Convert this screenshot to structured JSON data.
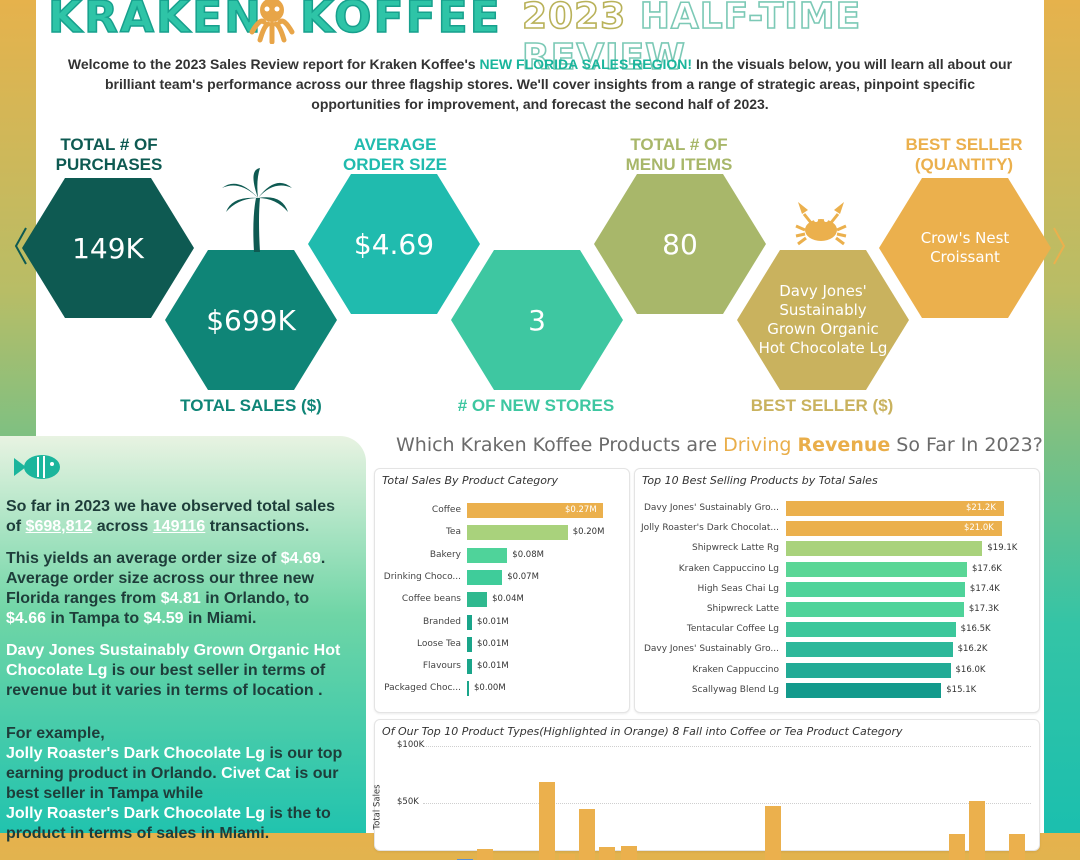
{
  "header": {
    "brand_left": "KRAKEN",
    "brand_right": "KOFFEE",
    "subtitle_year": "2023",
    "subtitle_rest": "HALF-TIME REVIEW",
    "octopus_icon": "octopus-icon"
  },
  "intro": {
    "part1": "Welcome to the 2023 Sales Review report for Kraken Koffee's ",
    "highlight": "NEW FLORIDA SALES REGION!",
    "part2": "  In the visuals below, you will learn all about our brilliant team's performance across our three flagship stores.  We'll cover insights from a range of strategic areas, pinpoint specific opportunities for improvement, and forecast the second half of 2023."
  },
  "kpis": {
    "purchases": {
      "label1": "TOTAL # OF",
      "label2": "PURCHASES",
      "value": "149K",
      "color": "#0e5a52"
    },
    "sales": {
      "label": "TOTAL SALES ($)",
      "value": "$699K",
      "color": "#0f8577"
    },
    "avg_order": {
      "label1": "AVERAGE",
      "label2": "ORDER SIZE",
      "value": "$4.69",
      "color": "#20bbae"
    },
    "new_stores": {
      "label": "# OF NEW STORES",
      "value": "3",
      "color": "#3ec7a1"
    },
    "menu_items": {
      "label1": "TOTAL # OF",
      "label2": "MENU ITEMS",
      "value": "80",
      "color": "#a8b76a"
    },
    "best_seller_dollar": {
      "label": "BEST SELLER ($)",
      "value": "Davy Jones' Sustainably Grown Organic Hot Chocolate Lg",
      "color": "#c9b25e"
    },
    "best_seller_qty": {
      "label1": "BEST SELLER",
      "label2": "(QUANTITY)",
      "value": "Crow's Nest Croissant",
      "color": "#ebb04d"
    }
  },
  "icons": {
    "palm": "palm-tree-icon",
    "crab": "crab-icon",
    "fish": "fish-icon"
  },
  "section_heading": {
    "part1": "Which Kraken Koffee Products are ",
    "driving": "Driving ",
    "revenue": "Revenue",
    "part2": " So Far In 2023?"
  },
  "left_text": {
    "p1_a": "So far in 2023 we have observed total sales of ",
    "p1_total": "$698,812",
    "p1_b": " across ",
    "p1_tx": "149116",
    "p1_c": " transactions.",
    "p2_a": "This yields an average order size of ",
    "p2_avg": "$4.69",
    "p2_b": ". Average order size across our three new Florida ranges from ",
    "p2_orl": "$4.81",
    "p2_c": " in Orlando, to ",
    "p2_tam": "$4.66",
    "p2_d": "  in Tampa to ",
    "p2_mia": "$4.59",
    "p2_e": " in Miami.",
    "p3_prod": "Davy Jones Sustainably Grown Organic Hot Chocolate Lg",
    "p3_rest": " is our best seller in terms of revenue but it varies in terms of location .",
    "p4_a": "For example,",
    "p4_prod1": "Jolly Roaster's Dark Chocolate Lg",
    "p4_b": " is our top earning product in Orlando. ",
    "p4_prod2": "Civet Cat",
    "p4_c": " is our best seller in Tampa while",
    "p4_prod3": "Jolly Roaster's Dark Chocolate Lg",
    "p4_d": " is the to",
    "p4_e": "product in terms of sales in Miami."
  },
  "chart_data": [
    {
      "type": "bar",
      "title": "Total Sales By Product Category",
      "categories": [
        "Coffee",
        "Tea",
        "Bakery",
        "Drinking Choco...",
        "Coffee beans",
        "Branded",
        "Loose Tea",
        "Flavours",
        "Packaged Choc..."
      ],
      "values": [
        0.27,
        0.2,
        0.08,
        0.07,
        0.04,
        0.01,
        0.01,
        0.01,
        0.0
      ],
      "value_labels": [
        "$0.27M",
        "$0.20M",
        "$0.08M",
        "$0.07M",
        "$0.04M",
        "$0.01M",
        "$0.01M",
        "$0.01M",
        "$0.00M"
      ],
      "colors": [
        "#ebb04d",
        "#a9d27c",
        "#4fd39a",
        "#3fcc9a",
        "#2fb98f",
        "#1aa58a",
        "#1aa58a",
        "#1aa58a",
        "#1aa58a"
      ],
      "unit": "$M"
    },
    {
      "type": "bar",
      "title": "Top 10 Best Selling Products by Total Sales",
      "categories": [
        "Davy Jones' Sustainably Gro...",
        "Jolly Roaster's Dark Chocolat...",
        "Shipwreck Latte Rg",
        "Kraken Cappuccino Lg",
        "High Seas Chai Lg",
        "Shipwreck Latte",
        "Tentacular Coffee Lg",
        "Davy Jones' Sustainably Gro...",
        "Kraken Cappuccino",
        "Scallywag Blend Lg"
      ],
      "values": [
        21.2,
        21.0,
        19.1,
        17.6,
        17.4,
        17.3,
        16.5,
        16.2,
        16.0,
        15.1
      ],
      "value_labels": [
        "$21.2K",
        "$21.0K",
        "$19.1K",
        "$17.6K",
        "$17.4K",
        "$17.3K",
        "$16.5K",
        "$16.2K",
        "$16.0K",
        "$15.1K"
      ],
      "colors": [
        "#ebb04d",
        "#ebb04d",
        "#a9d27c",
        "#5ad696",
        "#4fd39a",
        "#4fd39a",
        "#3cc79b",
        "#2db89a",
        "#22ab96",
        "#139a8c"
      ],
      "unit": "$K"
    },
    {
      "type": "bar",
      "title": "Of Our Top 10 Product Types(Highlighted in Orange) 8 Fall into Coffee or Tea Product Category",
      "ylabel": "Total Sales",
      "yticks": [
        "$100K",
        "$50K"
      ],
      "ylim": [
        0,
        100
      ],
      "values": [
        1,
        1,
        1,
        1,
        12,
        1,
        1,
        1,
        1,
        1,
        1,
        1,
        1,
        1,
        1,
        1,
        1,
        1,
        1,
        1,
        1,
        1,
        1,
        1
      ],
      "bars_visible": [
        {
          "value": 1,
          "color": "#5b8fd1"
        },
        {
          "value": 10,
          "color": "#ebb04d"
        },
        {
          "value": 68,
          "color": "#ebb04d"
        },
        {
          "value": 5,
          "color": "#ebb04d"
        },
        {
          "value": 45,
          "color": "#ebb04d"
        },
        {
          "value": 11,
          "color": "#ebb04d"
        },
        {
          "value": 12,
          "color": "#ebb04d"
        },
        {
          "value": 47,
          "color": "#ebb04d"
        },
        {
          "value": 23,
          "color": "#ebb04d"
        },
        {
          "value": 52,
          "color": "#ebb04d"
        },
        {
          "value": 23,
          "color": "#ebb04d"
        }
      ]
    }
  ]
}
